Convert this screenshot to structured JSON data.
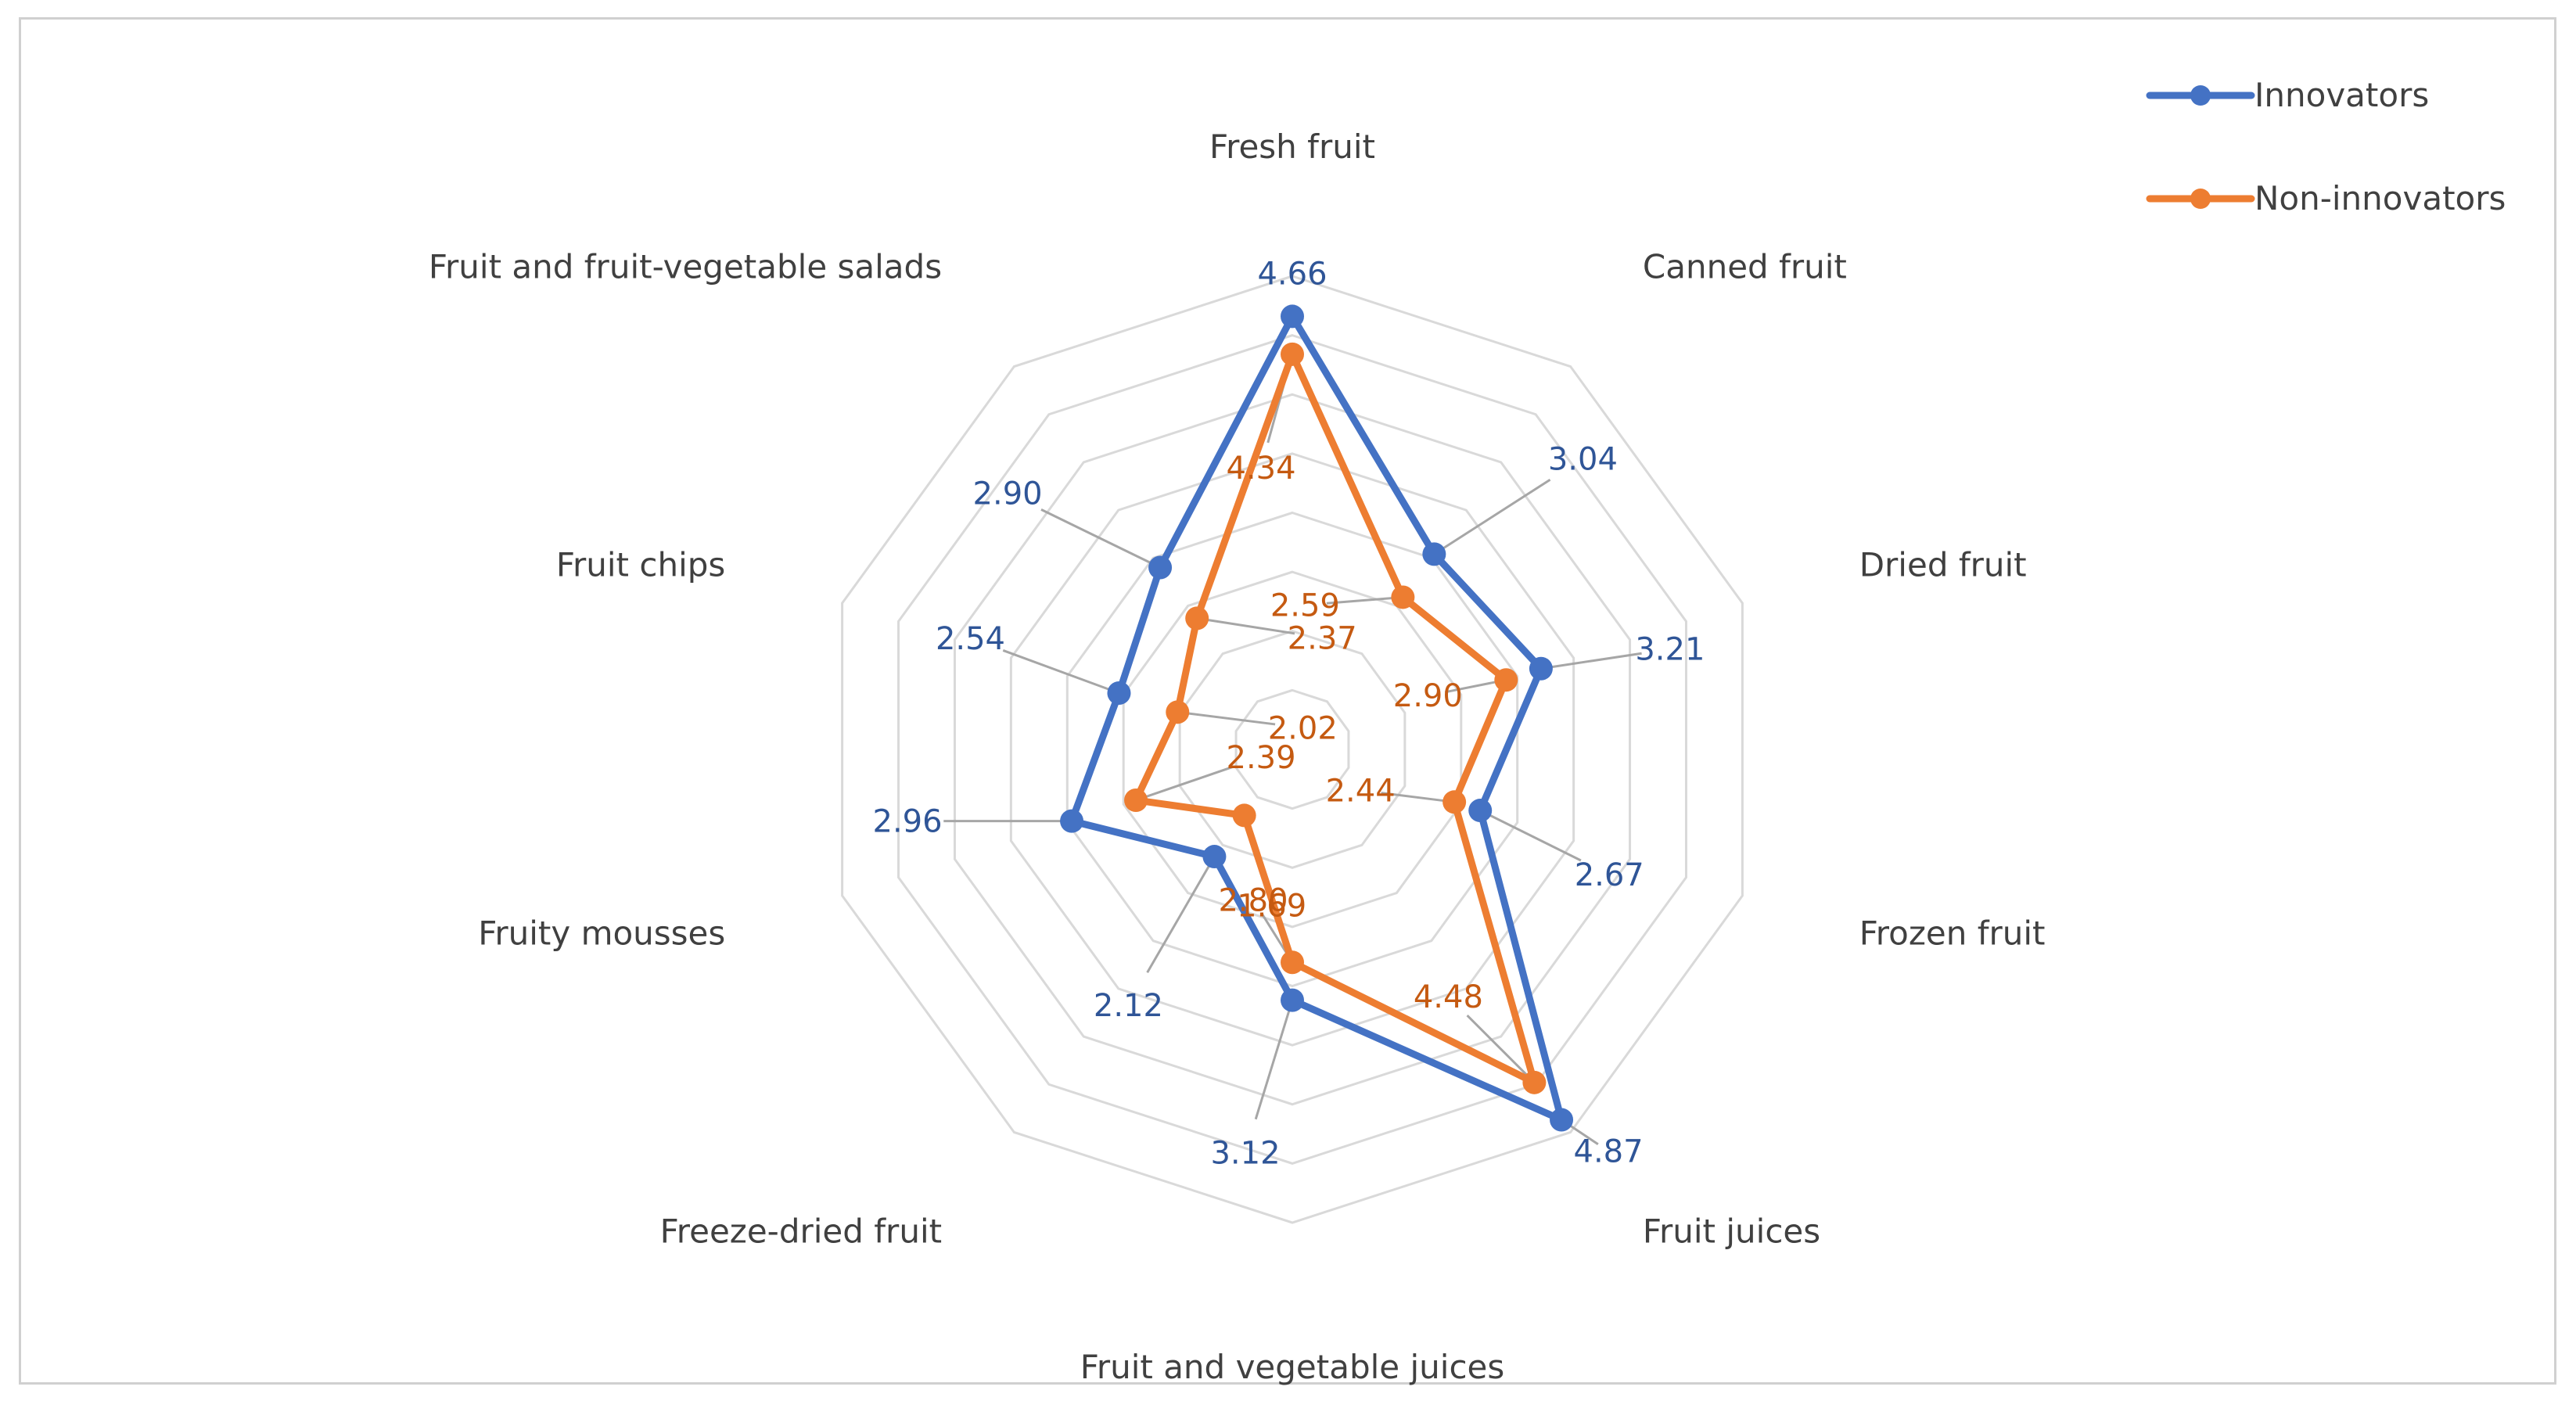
{
  "chart_data": {
    "type": "radar",
    "title": "",
    "categories": [
      "Fresh fruit",
      "Canned fruit",
      "Dried fruit",
      "Frozen fruit",
      "Fruit juices",
      "Fruit and vegetable juices",
      "Freeze-dried fruit",
      "Fruity mousses",
      "Fruit chips",
      "Fruit and fruit-vegetable salads"
    ],
    "rlim": [
      1,
      5
    ],
    "grid_levels": 8,
    "legend_position": "top-right",
    "series": [
      {
        "name": "Innovators",
        "color": "#4472c4",
        "label_color": "#2f5597",
        "values": [
          4.66,
          3.04,
          3.21,
          2.67,
          4.87,
          3.12,
          2.12,
          2.96,
          2.54,
          2.9
        ],
        "value_labels": [
          "4.66",
          "3.04",
          "3.21",
          "2.67",
          "4.87",
          "3.12",
          "2.12",
          "2.96",
          "2.54",
          "2.90"
        ]
      },
      {
        "name": "Non-innovators",
        "color": "#ed7d31",
        "label_color": "#c55a11",
        "values": [
          4.34,
          2.59,
          2.9,
          2.44,
          4.48,
          2.8,
          1.69,
          2.39,
          2.02,
          2.37
        ],
        "value_labels": [
          "4.34",
          "2.59",
          "2.90",
          "2.44",
          "4.48",
          "2.80",
          "1.69",
          "2.39",
          "2.02",
          "2.37"
        ]
      }
    ]
  },
  "colors": {
    "grid": "#d9d9d9",
    "leader": "#a6a6a6",
    "border": "#d0d0d0"
  }
}
